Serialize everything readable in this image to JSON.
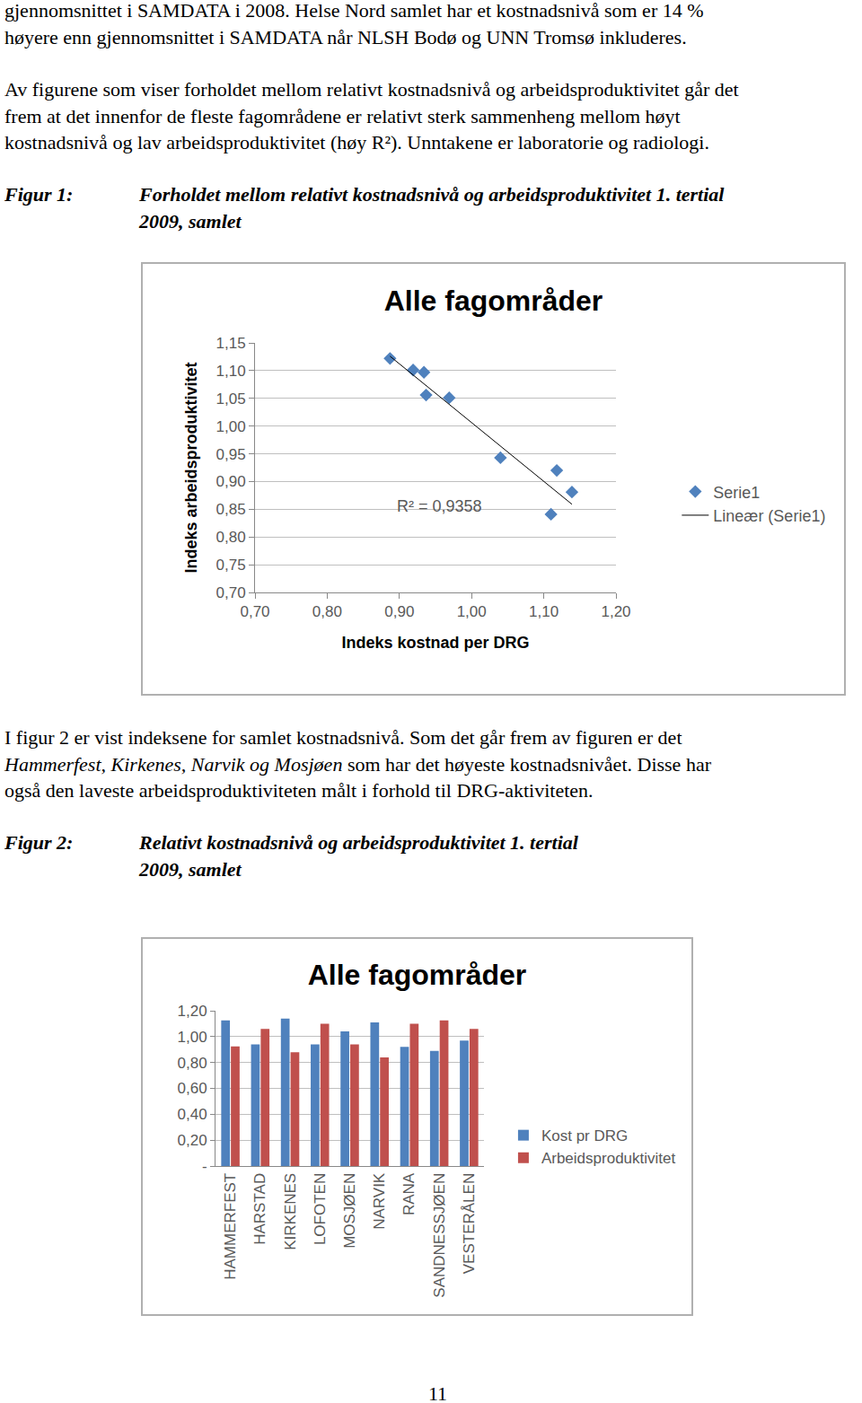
{
  "document": {
    "blocks": [
      {
        "lines": [
          [
            {
              "text": "gjennomsnittet i SAMDATA i 2008. Helse Nord samlet har et kostnadsnivå som er 14 %"
            }
          ],
          [
            {
              "text": "høyere enn gjennomsnittet i SAMDATA når NLSH Bodø og UNN Tromsø inkluderes."
            }
          ]
        ]
      },
      {
        "lines": [
          [
            {
              "text": "Av figurene som viser forholdet mellom relativt kostnadsnivå og arbeidsproduktivitet går det"
            }
          ],
          [
            {
              "text": "frem at det innenfor de fleste fagområdene er relativt sterk sammenheng mellom høyt"
            }
          ],
          [
            {
              "text": "kostnadsnivå og lav arbeidsproduktivitet (høy R²). Unntakene er laboratorie og radiologi."
            }
          ]
        ]
      },
      {
        "lines": [
          [
            {
              "text": "I figur 2 er vist indeksene for samlet kostnadsnivå. Som det går frem av figuren er det"
            }
          ],
          [
            {
              "text": "Hammerfest, Kirkenes, Narvik og Mosjøen",
              "italic": true
            },
            {
              "text": " som har det høyeste kostnadsnivået. Disse har"
            }
          ],
          [
            {
              "text": "også den laveste arbeidsproduktiviteten målt i forhold til DRG-aktiviteten."
            }
          ]
        ]
      }
    ],
    "figures": [
      {
        "label": "Figur 1:",
        "caption": [
          "Forholdet mellom relativt kostnadsnivå og arbeidsproduktivitet 1. tertial",
          "2009, samlet"
        ]
      },
      {
        "label": "Figur 2:",
        "caption": [
          "Relativt kostnadsnivå og arbeidsproduktivitet 1. tertial",
          "2009, samlet"
        ]
      }
    ],
    "page_number": "11"
  },
  "chart_data": [
    {
      "type": "scatter",
      "title": "Alle fagområder",
      "x_label": "Indeks kostnad per DRG",
      "y_label": "Indeks arbeidsproduktivitet",
      "series": [
        {
          "name": "Serie1",
          "type": "scatter",
          "marker": "diamond",
          "color": "#4f81bd",
          "x": [
            0.887,
            0.919,
            0.934,
            0.937,
            0.969,
            1.04,
            1.11,
            1.118,
            1.139
          ],
          "values": [
            1.122,
            1.101,
            1.097,
            1.056,
            1.051,
            0.943,
            0.841,
            0.92,
            0.881
          ]
        },
        {
          "name": "Lineær (Serie1)",
          "type": "line",
          "color": "#000000",
          "x": [
            0.887,
            1.139
          ],
          "values": [
            1.126,
            0.859
          ]
        }
      ],
      "annotations": [
        {
          "text": "R² = 0,9358",
          "x": 0.955,
          "y": 0.856
        }
      ],
      "xlim": [
        0.7,
        1.2
      ],
      "xticks": [
        {
          "value": 0.7,
          "label": "0,70"
        },
        {
          "value": 0.8,
          "label": "0,80"
        },
        {
          "value": 0.9,
          "label": "0,90"
        },
        {
          "value": 1.0,
          "label": "1,00"
        },
        {
          "value": 1.1,
          "label": "1,10"
        },
        {
          "value": 1.2,
          "label": "1,20"
        }
      ],
      "ylim": [
        0.7,
        1.15
      ],
      "yticks": [
        {
          "value": 0.7,
          "label": "0,70"
        },
        {
          "value": 0.75,
          "label": "0,75"
        },
        {
          "value": 0.8,
          "label": "0,80"
        },
        {
          "value": 0.85,
          "label": "0,85"
        },
        {
          "value": 0.9,
          "label": "0,90"
        },
        {
          "value": 0.95,
          "label": "0,95"
        },
        {
          "value": 1.0,
          "label": "1,00"
        },
        {
          "value": 1.05,
          "label": "1,05"
        },
        {
          "value": 1.1,
          "label": "1,10"
        },
        {
          "value": 1.15,
          "label": "1,15"
        }
      ],
      "grid": "y",
      "legend": "right"
    },
    {
      "type": "bar",
      "title": "Alle fagområder",
      "categories": [
        "HAMMERFEST",
        "HARSTAD",
        "KIRKENES",
        "LOFOTEN",
        "MOSJØEN",
        "NARVIK",
        "RANA",
        "SANDNESSJØEN",
        "VESTERÅLEN"
      ],
      "series": [
        {
          "name": "Kost pr DRG",
          "color": "#4f81bd",
          "values": [
            1.125,
            0.94,
            1.14,
            0.94,
            1.04,
            1.11,
            0.92,
            0.89,
            0.97
          ]
        },
        {
          "name": "Arbeidsproduktivitet",
          "color": "#c0504d",
          "values": [
            0.924,
            1.06,
            0.88,
            1.1,
            0.94,
            0.84,
            1.1,
            1.125,
            1.06
          ]
        }
      ],
      "ylim": [
        0,
        1.2
      ],
      "yticks": [
        {
          "value": 0,
          "label": "-"
        },
        {
          "value": 0.2,
          "label": "0,20"
        },
        {
          "value": 0.4,
          "label": "0,40"
        },
        {
          "value": 0.6,
          "label": "0,60"
        },
        {
          "value": 0.8,
          "label": "0,80"
        },
        {
          "value": 1.0,
          "label": "1,00"
        },
        {
          "value": 1.2,
          "label": "1,20"
        }
      ],
      "grid": "y",
      "legend": "right"
    }
  ]
}
